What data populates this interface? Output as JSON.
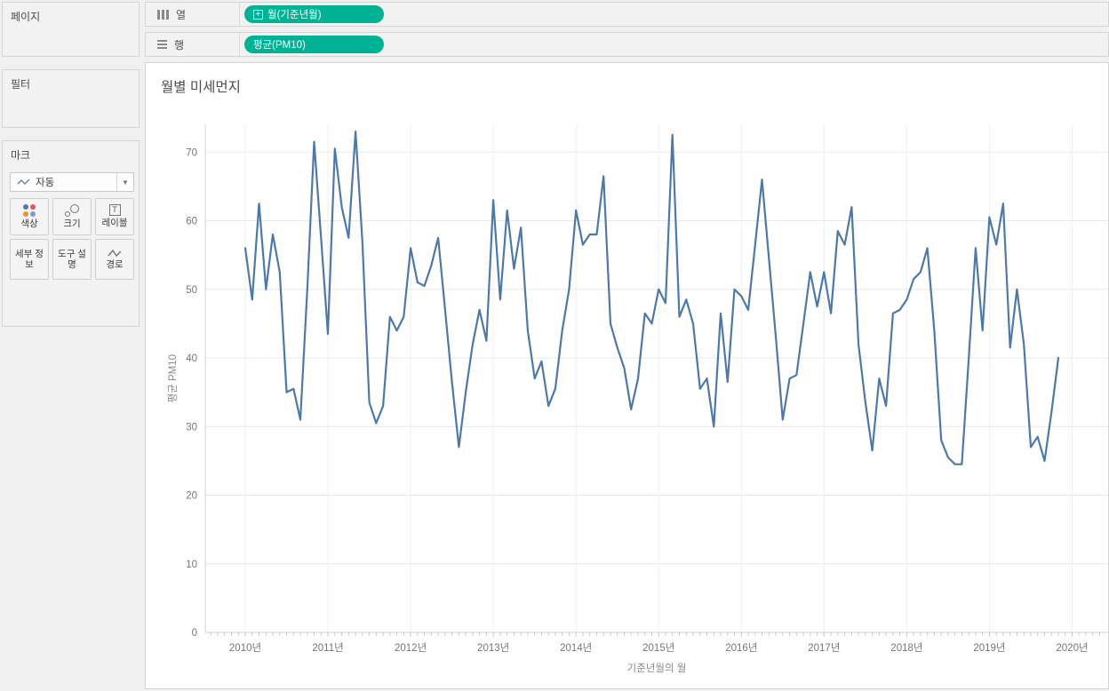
{
  "sidebar": {
    "pages_label": "페이지",
    "filters_label": "필터",
    "marks": {
      "label": "마크",
      "mark_type_selected": "자동",
      "buttons": [
        {
          "label": "색상",
          "icon": "color-dots-icon"
        },
        {
          "label": "크기",
          "icon": "size-circles-icon"
        },
        {
          "label": "레이블",
          "icon": "label-t-icon"
        },
        {
          "label": "세부 정보",
          "icon": "none"
        },
        {
          "label": "도구 설명",
          "icon": "none"
        },
        {
          "label": "경로",
          "icon": "path-zigzag-icon"
        }
      ]
    }
  },
  "shelves": {
    "columns": {
      "label": "열",
      "pill": "월(기준년월)",
      "pill_icon": "plus-box-icon"
    },
    "rows": {
      "label": "행",
      "pill": "평균(PM10)",
      "pill_icon": "none"
    }
  },
  "chart": {
    "title": "월별 미세먼지"
  },
  "colors": {
    "pill_green": "#00b294",
    "line_blue": "#4e79a7",
    "gridline": "#e9e9e9",
    "axis_line": "#d0d0d0",
    "tick_text": "#757575"
  },
  "chart_data": {
    "type": "line",
    "title": "월별 미세먼지",
    "xlabel": "기준년월의 월",
    "ylabel": "평균 PM10",
    "x_start_month": "2010-01",
    "x_interval": "monthly",
    "x_tick_labels": [
      "2010년",
      "2011년",
      "2012년",
      "2013년",
      "2014년",
      "2015년",
      "2016년",
      "2017년",
      "2018년",
      "2019년",
      "2020년"
    ],
    "y_ticks": [
      0,
      10,
      20,
      30,
      40,
      50,
      60,
      70
    ],
    "ylim": [
      0,
      75
    ],
    "grid": "horizontal-major, faint-vertical-years",
    "legend": "none",
    "series": [
      {
        "name": "평균(PM10)",
        "color": "#4e79a7",
        "values": [
          56,
          48.5,
          62.5,
          50,
          58,
          52.5,
          35,
          35.5,
          31,
          50,
          71.5,
          57.5,
          43.5,
          70.5,
          62,
          57.5,
          73,
          57,
          33.5,
          30.5,
          33,
          46,
          44,
          46,
          56,
          51,
          50.5,
          53.5,
          57.5,
          47,
          36.5,
          27,
          35,
          42,
          47,
          42.5,
          63,
          48.5,
          61.5,
          53,
          59,
          44,
          37,
          39.5,
          33,
          35.5,
          44,
          50,
          61.5,
          56.5,
          58,
          58,
          66.5,
          45,
          41.5,
          38.5,
          32.5,
          37,
          46.5,
          45,
          50,
          48,
          72.5,
          46,
          48.5,
          45,
          35.5,
          37,
          30,
          46.5,
          36.5,
          50,
          49,
          47,
          56.5,
          66,
          54.5,
          43,
          31,
          37,
          37.5,
          45,
          52.5,
          47.5,
          52.5,
          46.5,
          58.5,
          56.5,
          62,
          42,
          33.5,
          26.5,
          37,
          33,
          46.5,
          47,
          48.5,
          51.5,
          52.5,
          56,
          44,
          28,
          25.5,
          24.5,
          24.5,
          40,
          56,
          44,
          60.5,
          56.5,
          62.5,
          41.5,
          50,
          42,
          27,
          28.5,
          25,
          32,
          40
        ]
      }
    ]
  }
}
